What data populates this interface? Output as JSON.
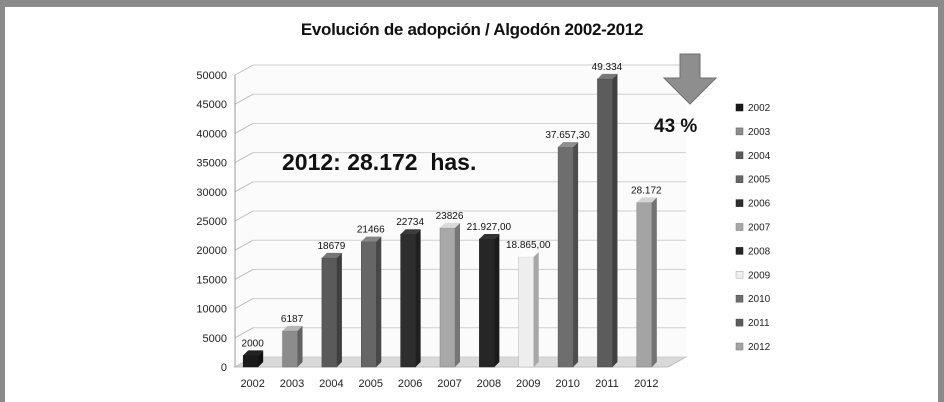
{
  "chart_data": {
    "type": "bar",
    "title": "Evolución de adopción / Algodón 2002-2012",
    "categories": [
      "2002",
      "2003",
      "2004",
      "2005",
      "2006",
      "2007",
      "2008",
      "2009",
      "2010",
      "2011",
      "2012"
    ],
    "values": [
      2000,
      6187,
      18679,
      21466,
      22734,
      23826,
      21927,
      18865,
      37657.3,
      49334,
      28172
    ],
    "data_labels": [
      "2000",
      "6187",
      "18679",
      "21466",
      "22734",
      "23826",
      "21.927,00",
      "18.865,00",
      "37.657,30",
      "49.334",
      "28.172"
    ],
    "y_ticks": [
      "0",
      "5000",
      "10000",
      "15000",
      "20000",
      "25000",
      "30000",
      "35000",
      "40000",
      "45000",
      "50000"
    ],
    "ylim": [
      0,
      50000
    ],
    "xlabel": "",
    "ylabel": "",
    "grid": true,
    "legend_position": "right",
    "legend": [
      "2002",
      "2003",
      "2004",
      "2005",
      "2006",
      "2007",
      "2008",
      "2009",
      "2010",
      "2011",
      "2012"
    ],
    "colors": [
      "#1a1a1a",
      "#8c8c8c",
      "#5a5a5a",
      "#666666",
      "#2e2e2e",
      "#a8a8a8",
      "#262626",
      "#eeeeee",
      "#6e6e6e",
      "#5c5c5c",
      "#a4a4a4"
    ],
    "annotations": {
      "summary": "2012: 28.172  has.",
      "change": "43 %"
    }
  }
}
